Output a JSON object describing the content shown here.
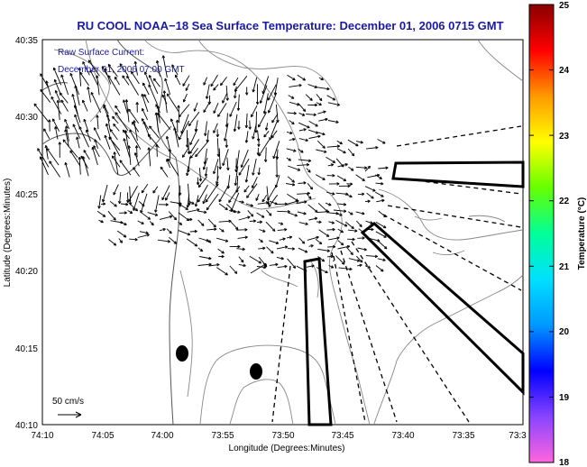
{
  "title": "RU COOL  NOAA−18  Sea Surface Temperature:  December 01, 2006 0715 GMT",
  "subtitle_line1": "Raw Surface Current:",
  "subtitle_line2": "December 01, 2006 07:00 GMT",
  "x_axis": {
    "label": "Longitude (Degrees:Minutes)",
    "ticks": [
      "74:10",
      "74:05",
      "74:00",
      "73:55",
      "73:50",
      "73:45",
      "73:40",
      "73:35",
      "73:3"
    ]
  },
  "y_axis": {
    "label": "Latitude (Degrees:Minutes)",
    "ticks": [
      "40:35",
      "40:30",
      "40:25",
      "40:20",
      "40:15",
      "40:10"
    ]
  },
  "colorbar": {
    "label": "Temperature (°C)",
    "ticks": [
      "25",
      "24",
      "23",
      "22",
      "21",
      "20",
      "19",
      "18"
    ],
    "range": [
      18,
      25
    ],
    "colors": [
      "#ff66dd",
      "#8844ff",
      "#0000ff",
      "#0099ff",
      "#00e0ff",
      "#00ff99",
      "#66ff00",
      "#ffff00",
      "#ff9900",
      "#ff0000",
      "#880000"
    ]
  },
  "scale_label": "50 cm/s"
}
